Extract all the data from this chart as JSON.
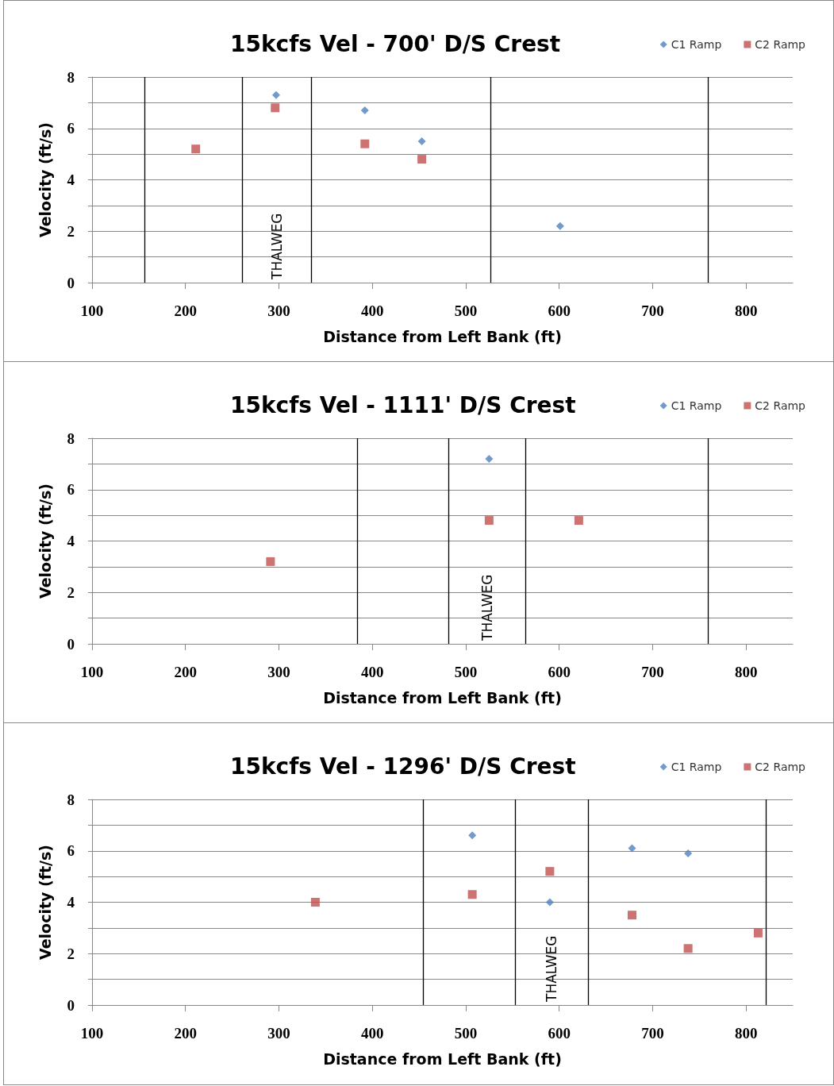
{
  "chart_data": [
    {
      "type": "scatter",
      "title": "15kcfs Vel - 700' D/S Crest",
      "xlabel": "Distance from Left Bank (ft)",
      "ylabel": "Velocity (ft/s)",
      "xlim": [
        100,
        850
      ],
      "xticks": [
        100,
        200,
        300,
        400,
        500,
        600,
        700,
        800
      ],
      "ylim": [
        0,
        8
      ],
      "yticks": [
        0,
        {
          "value": 1,
          "label": null
        },
        2,
        {
          "value": 3,
          "label": null
        },
        4,
        {
          "value": 5,
          "label": null
        },
        6,
        {
          "value": 7,
          "label": null
        },
        8
      ],
      "grid": "y",
      "legend": "top right",
      "series": [
        {
          "name": "C1 Ramp",
          "color": "#4f81bd",
          "marker": "diamond",
          "x": [
            297,
            392,
            453,
            601
          ],
          "values": [
            7.3,
            6.7,
            5.5,
            2.2
          ]
        },
        {
          "name": "C2 Ramp",
          "color": "#c0504d",
          "marker": "square",
          "x": [
            211,
            296,
            392,
            453
          ],
          "values": [
            5.2,
            6.8,
            5.4,
            4.8
          ]
        }
      ],
      "ref_lines": [
        {
          "axis": "x",
          "value": 156,
          "color": "#000000"
        },
        {
          "axis": "x",
          "value": 261,
          "color": "#000000"
        },
        {
          "axis": "x",
          "value": 335,
          "color": "#000000"
        },
        {
          "axis": "x",
          "value": 527,
          "color": "#000000"
        },
        {
          "axis": "x",
          "value": 759,
          "color": "#000000"
        }
      ],
      "annotations": [
        "THALWEG"
      ]
    },
    {
      "type": "scatter",
      "title": "15kcfs Vel - 1111' D/S Crest",
      "xlabel": "Distance from Left Bank (ft)",
      "ylabel": "Velocity (ft/s)",
      "xlim": [
        100,
        850
      ],
      "xticks": [
        100,
        200,
        300,
        400,
        500,
        600,
        700,
        800
      ],
      "ylim": [
        0,
        8
      ],
      "yticks": [
        0,
        {
          "value": 1,
          "label": null
        },
        2,
        {
          "value": 3,
          "label": null
        },
        4,
        {
          "value": 5,
          "label": null
        },
        6,
        {
          "value": 7,
          "label": null
        },
        8
      ],
      "grid": "y",
      "legend": "top right",
      "series": [
        {
          "name": "C1 Ramp",
          "color": "#4f81bd",
          "marker": "diamond",
          "x": [
            525
          ],
          "values": [
            7.2
          ]
        },
        {
          "name": "C2 Ramp",
          "color": "#c0504d",
          "marker": "square",
          "x": [
            291,
            525,
            621
          ],
          "values": [
            3.2,
            4.8,
            4.8
          ]
        }
      ],
      "ref_lines": [
        {
          "axis": "x",
          "value": 384,
          "color": "#000000"
        },
        {
          "axis": "x",
          "value": 482,
          "color": "#000000"
        },
        {
          "axis": "x",
          "value": 564,
          "color": "#000000"
        },
        {
          "axis": "x",
          "value": 759,
          "color": "#000000"
        }
      ],
      "annotations": [
        "THALWEG"
      ]
    },
    {
      "type": "scatter",
      "title": "15kcfs Vel - 1296' D/S Crest",
      "xlabel": "Distance from Left Bank (ft)",
      "ylabel": "Velocity (ft/s)",
      "xlim": [
        100,
        850
      ],
      "xticks": [
        100,
        200,
        300,
        400,
        500,
        600,
        700,
        800
      ],
      "ylim": [
        0,
        8
      ],
      "yticks": [
        0,
        {
          "value": 1,
          "label": null
        },
        2,
        {
          "value": 3,
          "label": null
        },
        4,
        {
          "value": 5,
          "label": null
        },
        6,
        {
          "value": 7,
          "label": null
        },
        8
      ],
      "grid": "y",
      "legend": "top right",
      "series": [
        {
          "name": "C1 Ramp",
          "color": "#4f81bd",
          "marker": "diamond",
          "x": [
            507,
            590,
            678,
            738
          ],
          "values": [
            6.6,
            4.0,
            6.1,
            5.9
          ]
        },
        {
          "name": "C2 Ramp",
          "color": "#c0504d",
          "marker": "square",
          "x": [
            339,
            507,
            590,
            678,
            738,
            813
          ],
          "values": [
            4.0,
            4.3,
            5.2,
            3.5,
            2.2,
            2.8
          ]
        }
      ],
      "ref_lines": [
        {
          "axis": "x",
          "value": 454,
          "color": "#000000"
        },
        {
          "axis": "x",
          "value": 553,
          "color": "#000000"
        },
        {
          "axis": "x",
          "value": 631,
          "color": "#000000"
        },
        {
          "axis": "x",
          "value": 821,
          "color": "#000000"
        }
      ],
      "annotations": [
        "THALWEG"
      ]
    }
  ]
}
